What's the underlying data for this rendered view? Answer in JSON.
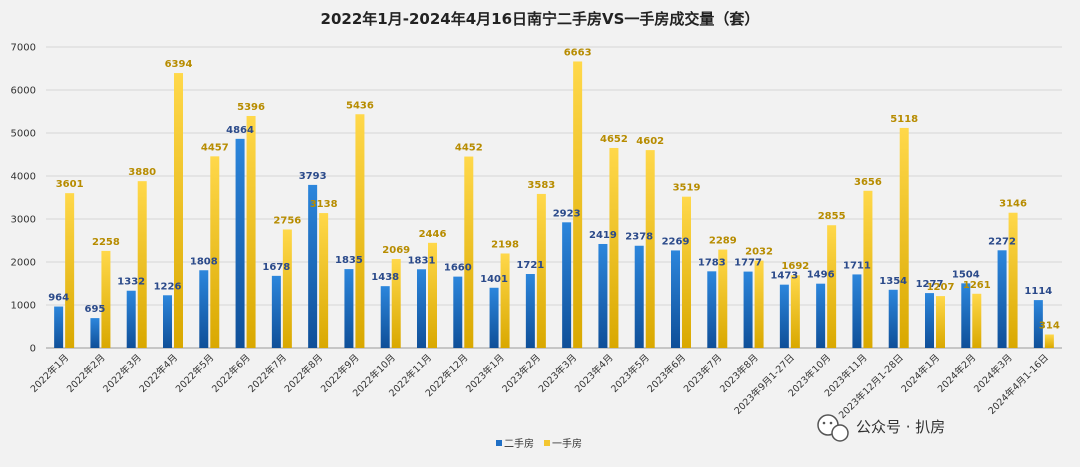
{
  "watermark": {
    "icon": "wechat-icon",
    "text": "公众号 · 扒房"
  },
  "chart_data": {
    "type": "bar",
    "title": "2022年1月-2024年4月16日南宁二手房VS一手房成交量（套）",
    "categories": [
      "2022年1月",
      "2022年2月",
      "2022年3月",
      "2022年4月",
      "2022年5月",
      "2022年6月",
      "2022年7月",
      "2022年8月",
      "2022年9月",
      "2022年10月",
      "2022年11月",
      "2022年12月",
      "2023年1月",
      "2023年2月",
      "2023年3月",
      "2023年4月",
      "2023年5月",
      "2023年6月",
      "2023年7月",
      "2023年8月",
      "2023年9月1-27日",
      "2023年10月",
      "2023年11月",
      "2023年12月1-28日",
      "2024年1月",
      "2024年2月",
      "2024年3月",
      "2024年4月1-16日"
    ],
    "series": [
      {
        "name": "二手房",
        "color": "#1f6fc5",
        "values": [
          964,
          695,
          1332,
          1226,
          1808,
          4864,
          1678,
          3793,
          1835,
          1438,
          1831,
          1660,
          1401,
          1721,
          2923,
          2419,
          2378,
          2269,
          1783,
          1777,
          1473,
          1496,
          1711,
          1354,
          1277,
          1504,
          2272,
          1114
        ]
      },
      {
        "name": "一手房",
        "color": "#f3c631",
        "values": [
          3601,
          2258,
          3880,
          6394,
          4457,
          5396,
          2756,
          3138,
          5436,
          2069,
          2446,
          4452,
          2198,
          3583,
          6663,
          4652,
          4602,
          3519,
          2289,
          2032,
          1692,
          2855,
          3656,
          5118,
          1207,
          1261,
          3146,
          314
        ]
      }
    ],
    "yticks": [
      0,
      1000,
      2000,
      3000,
      4000,
      5000,
      6000,
      7000
    ],
    "ylim": [
      0,
      7000
    ],
    "xlabel": "",
    "ylabel": "",
    "grid": true,
    "legend": "bottom-center",
    "label_colors": {
      "二手房": "#2b4a8a",
      "一手房": "#b78c00"
    }
  }
}
